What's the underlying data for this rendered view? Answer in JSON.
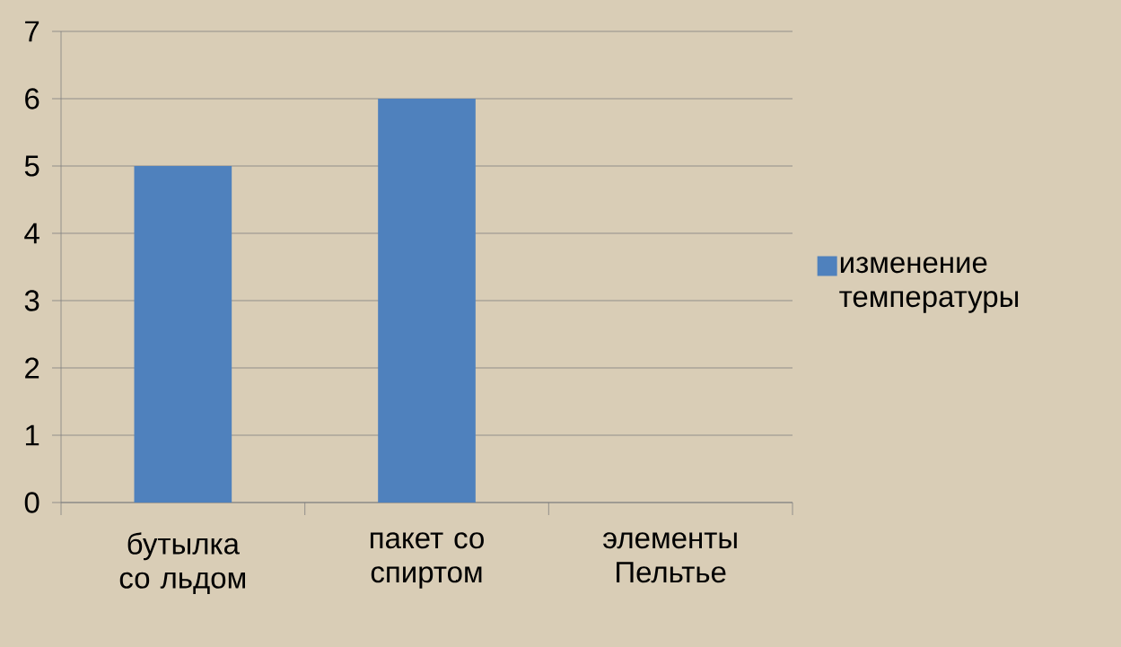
{
  "chart_data": {
    "type": "bar",
    "categories": [
      "бутылка со льдом",
      "пакет со спиртом",
      "элементы Пельтье"
    ],
    "series": [
      {
        "name": "изменение температуры",
        "color": "#4f81bd",
        "values": [
          5,
          6,
          0
        ]
      }
    ],
    "ylim": [
      0,
      7
    ],
    "yticks": [
      0,
      1,
      2,
      3,
      4,
      5,
      6,
      7
    ],
    "grid": "y",
    "legend": "right"
  }
}
